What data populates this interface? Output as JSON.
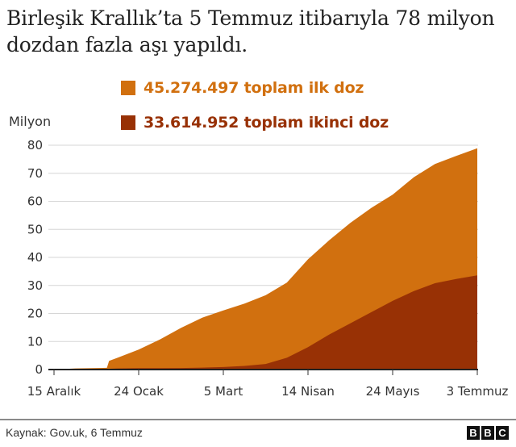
{
  "title": "Birleşik Krallık’ta 5 Temmuz itibarıyla 78 milyon dozdan fazla aşı yapıldı.",
  "legend": [
    {
      "label": "45.274.497 toplam ilk doz",
      "color": "#D1700F"
    },
    {
      "label": "33.614.952 toplam ikinci doz",
      "color": "#983105"
    }
  ],
  "ylabel": "Milyon",
  "footer": {
    "source": "Kaynak: Gov.uk, 6 Temmuz",
    "logo": [
      "B",
      "B",
      "C"
    ]
  },
  "chart_data": {
    "type": "area",
    "stacked": true,
    "title": "Birleşik Krallık’ta 5 Temmuz itibarıyla 78 milyon dozdan fazla aşı yapıldı.",
    "xlabel": "",
    "ylabel": "Milyon",
    "ylim": [
      0,
      80
    ],
    "yticks": [
      0,
      10,
      20,
      30,
      40,
      50,
      60,
      70,
      80
    ],
    "xticks": [
      {
        "label": "15 Aralık",
        "day": 0
      },
      {
        "label": "24 Ocak",
        "day": 40
      },
      {
        "label": "5 Mart",
        "day": 80
      },
      {
        "label": "14 Nisan",
        "day": 120
      },
      {
        "label": "24 Mayıs",
        "day": 160
      },
      {
        "label": "3 Temmuz",
        "day": 200
      }
    ],
    "grid": true,
    "legend_position": "top",
    "x_days": [
      -3,
      0,
      10,
      25,
      26,
      30,
      40,
      50,
      60,
      70,
      80,
      90,
      100,
      110,
      120,
      130,
      140,
      150,
      160,
      170,
      180,
      190,
      200
    ],
    "series": [
      {
        "name": "toplam ikinci doz",
        "color": "#983105",
        "values": [
          0,
          0,
          0.1,
          0.2,
          0.3,
          0.4,
          0.5,
          0.5,
          0.55,
          0.7,
          0.9,
          1.3,
          2.0,
          4.2,
          8.0,
          12.5,
          16.5,
          20.5,
          24.5,
          28.0,
          30.8,
          32.3,
          33.6
        ]
      },
      {
        "name": "toplam ilk doz",
        "color": "#D1700F",
        "values": [
          0,
          0,
          0.3,
          0.4,
          2.8,
          3.8,
          6.6,
          10.2,
          14.3,
          17.8,
          20.2,
          22.2,
          24.5,
          26.8,
          31.3,
          33.6,
          35.8,
          37.2,
          37.9,
          40.6,
          42.5,
          43.9,
          45.3
        ]
      }
    ],
    "stacked_totals": [
      0,
      0,
      0.4,
      0.6,
      3.1,
      4.2,
      7.1,
      10.7,
      14.9,
      18.5,
      21.1,
      23.5,
      26.5,
      31.0,
      39.3,
      46.1,
      52.3,
      57.7,
      62.4,
      68.6,
      73.3,
      76.2,
      78.9
    ]
  }
}
